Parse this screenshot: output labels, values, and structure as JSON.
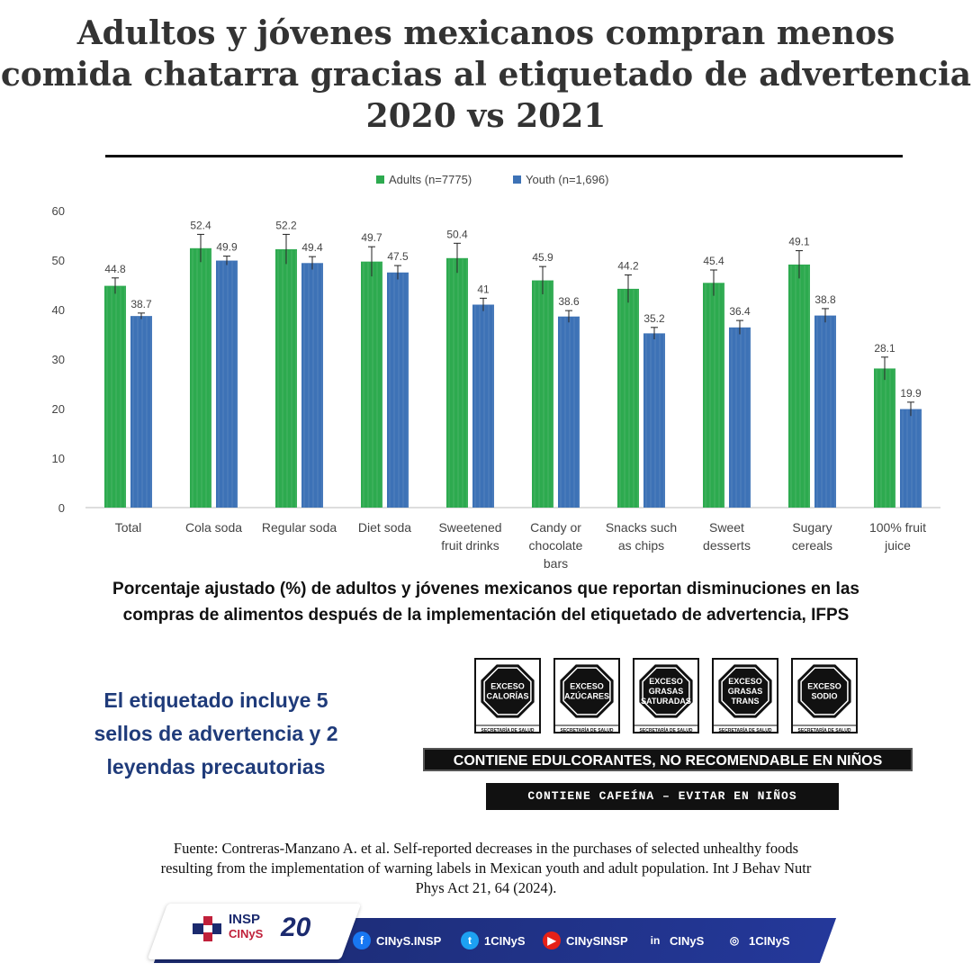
{
  "header": {
    "title_lines": [
      "Adultos y jóvenes mexicanos compran menos",
      "comida chatarra gracias al etiquetado de advertencia",
      "2020 vs 2021"
    ]
  },
  "chart_data": {
    "type": "bar",
    "categories": [
      [
        "Total"
      ],
      [
        "Cola soda"
      ],
      [
        "Regular soda"
      ],
      [
        "Diet soda"
      ],
      [
        "Sweetened",
        "fruit drinks"
      ],
      [
        "Candy or",
        "chocolate",
        "bars"
      ],
      [
        "Snacks such",
        "as chips"
      ],
      [
        "Sweet",
        "desserts"
      ],
      [
        "Sugary",
        "cereals"
      ],
      [
        "100% fruit",
        "juice"
      ]
    ],
    "series": [
      {
        "name": "Adults (n=7775)",
        "color": "#2daa4f",
        "values": [
          44.8,
          52.4,
          52.2,
          49.7,
          50.4,
          45.9,
          44.2,
          45.4,
          49.1,
          28.1
        ],
        "labels": [
          "44.8",
          "52.4",
          "52.2",
          "49.7",
          "50.4",
          "45.9",
          "44.2",
          "45.4",
          "49.1",
          "28.1"
        ],
        "error": [
          1.6,
          2.8,
          3.0,
          3.0,
          3.0,
          2.8,
          2.8,
          2.6,
          2.8,
          2.3
        ]
      },
      {
        "name": "Youth (n=1,696)",
        "color": "#3d72b6",
        "values": [
          38.7,
          49.9,
          49.4,
          47.5,
          41,
          38.6,
          35.2,
          36.4,
          38.8,
          19.9
        ],
        "labels": [
          "38.7",
          "49.9",
          "49.4",
          "47.5",
          "41",
          "38.6",
          "35.2",
          "36.4",
          "38.8",
          "19.9"
        ],
        "error": [
          0.6,
          0.9,
          1.3,
          1.4,
          1.3,
          1.2,
          1.2,
          1.4,
          1.4,
          1.4
        ]
      }
    ],
    "ylim": [
      0,
      60
    ],
    "yticks": [
      0,
      10,
      20,
      30,
      40,
      50,
      60
    ],
    "legend_position": "top-center",
    "grid": false
  },
  "caption": {
    "lines": [
      "Porcentaje ajustado (%) de adultos y jóvenes mexicanos que reportan disminuciones en las",
      "compras de alimentos después de la implementación del etiquetado de advertencia, IFPS"
    ]
  },
  "labels_note": {
    "lines": [
      "El etiquetado incluye 5",
      "sellos de advertencia y 2",
      "leyendas precautorias"
    ]
  },
  "seals": {
    "items": [
      [
        "EXCESO",
        "CALORÍAS"
      ],
      [
        "EXCESO",
        "AZÚCARES"
      ],
      [
        "EXCESO",
        "GRASAS",
        "SATURADAS"
      ],
      [
        "EXCESO",
        "GRASAS",
        "TRANS"
      ],
      [
        "EXCESO",
        "SODIO"
      ]
    ],
    "footer_text": "SECRETARÍA DE SALUD"
  },
  "leyendas": {
    "first": "CONTIENE EDULCORANTES, NO RECOMENDABLE EN NIÑOS",
    "second": "CONTIENE CAFEÍNA – EVITAR EN NIÑOS"
  },
  "source": {
    "lines": [
      "Fuente: Contreras-Manzano A. et al. Self-reported decreases in the purchases of selected unhealthy foods",
      "resulting from the implementation of warning labels in Mexican youth and adult population. Int J Behav Nutr",
      "Phys Act 21, 64 (2024)."
    ]
  },
  "footer": {
    "logo_insp": "INSP",
    "logo_cinys": "CINyS",
    "years": "20",
    "social": [
      {
        "icon": "facebook-icon",
        "glyph": "f",
        "color": "#1877f2",
        "label": "CINyS.INSP"
      },
      {
        "icon": "twitter-icon",
        "glyph": "t",
        "color": "#1da1f2",
        "label": "1CINyS"
      },
      {
        "icon": "youtube-icon",
        "glyph": "▶",
        "color": "#e62117",
        "label": "CINySINSP"
      },
      {
        "icon": "linkedin-icon",
        "glyph": "in",
        "color": "transparent",
        "label": "CINyS"
      },
      {
        "icon": "instagram-icon",
        "glyph": "◎",
        "color": "transparent",
        "label": "1CINyS"
      }
    ]
  }
}
